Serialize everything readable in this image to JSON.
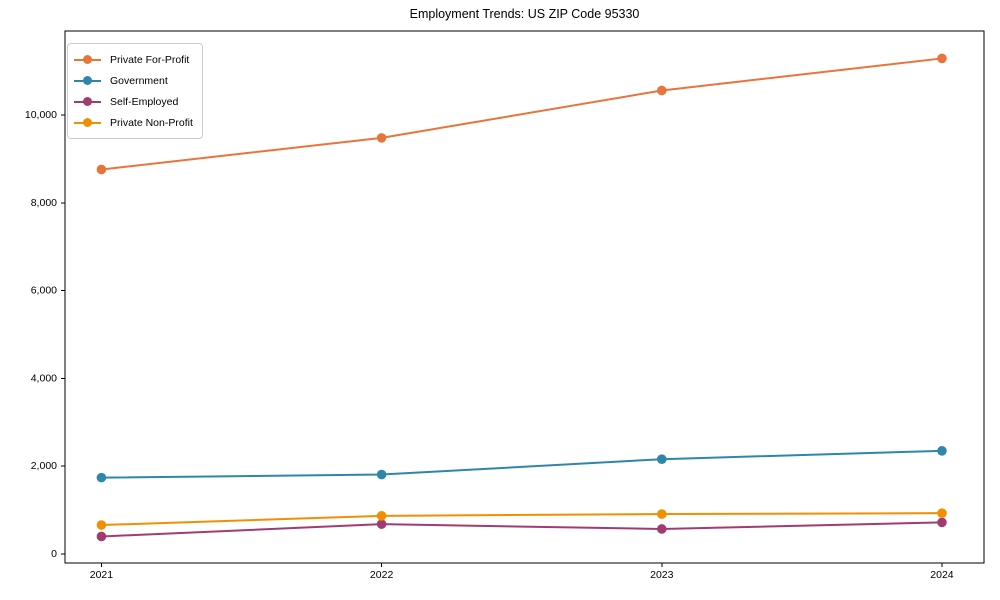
{
  "chart_data": {
    "type": "line",
    "title": "Employment Trends: US ZIP Code 95330",
    "xlabel": "",
    "ylabel": "",
    "x": [
      2021,
      2022,
      2023,
      2024
    ],
    "xticklabels": [
      "2021",
      "2022",
      "2023",
      "2024"
    ],
    "yticks": [
      0,
      2000,
      4000,
      6000,
      8000,
      10000
    ],
    "yticklabels": [
      "0",
      "2,000",
      "4,000",
      "6,000",
      "8,000",
      "10,000"
    ],
    "xlim": [
      2020.87,
      2024.15
    ],
    "ylim": [
      -205,
      11915
    ],
    "grid": false,
    "legend_position": "upper left",
    "marker": "circle",
    "series": [
      {
        "name": "Private For-Profit",
        "color": "#E8743B",
        "values": [
          8760,
          9480,
          10560,
          11290
        ]
      },
      {
        "name": "Government",
        "color": "#2E86AB",
        "values": [
          1740,
          1810,
          2160,
          2350
        ]
      },
      {
        "name": "Self-Employed",
        "color": "#A23B72",
        "values": [
          400,
          680,
          570,
          720
        ]
      },
      {
        "name": "Private Non-Profit",
        "color": "#F18F01",
        "values": [
          660,
          870,
          910,
          930
        ]
      }
    ]
  }
}
